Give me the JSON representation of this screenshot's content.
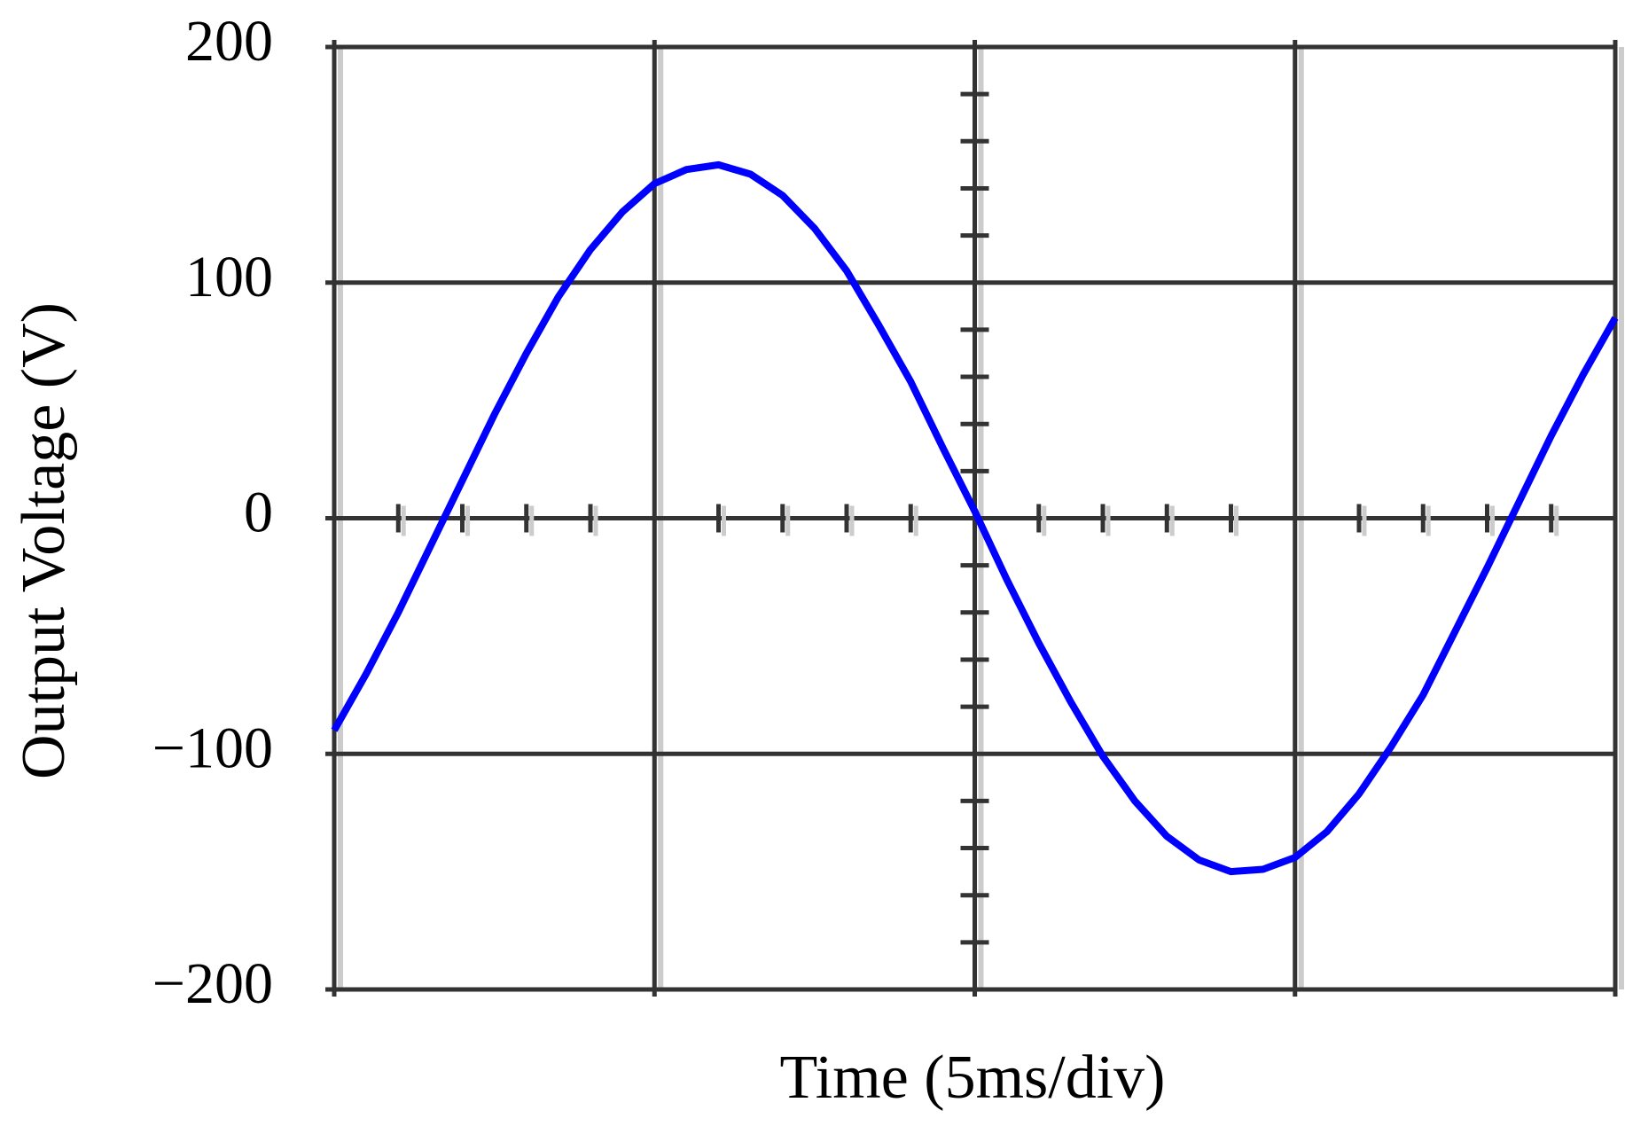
{
  "chart_data": {
    "type": "line",
    "x_label": "Time (5ms/div)",
    "y_label": "Output Voltage (V)",
    "x": [
      0,
      0.5,
      1,
      1.5,
      2,
      2.5,
      3,
      3.5,
      4,
      4.5,
      5,
      5.5,
      6,
      6.5,
      7,
      7.5,
      8,
      8.5,
      9,
      9.5,
      10,
      10.5,
      11,
      11.5,
      12,
      12.5,
      13,
      13.5,
      14,
      14.5,
      15,
      15.5,
      16,
      16.5,
      17,
      17.5,
      18,
      18.5,
      19,
      19.5,
      20
    ],
    "series": [
      {
        "name": "Output Voltage",
        "color": "#0000ff",
        "values": [
          -90,
          -66,
          -40,
          -12,
          16,
          44,
          70,
          94,
          114,
          130,
          142,
          148,
          150,
          146,
          137,
          123,
          105,
          82,
          58,
          30,
          3,
          -26,
          -53,
          -78,
          -101,
          -120,
          -135,
          -145,
          -150,
          -149,
          -144,
          -133,
          -117,
          -97,
          -75,
          -48,
          -21,
          7,
          35,
          61,
          85
        ]
      }
    ],
    "xlim": [
      0,
      20
    ],
    "ylim": [
      -200,
      200
    ],
    "yticks": [
      {
        "value": -200,
        "label": "−200"
      },
      {
        "value": -100,
        "label": "−100"
      },
      0,
      100,
      200
    ],
    "grid": true
  }
}
